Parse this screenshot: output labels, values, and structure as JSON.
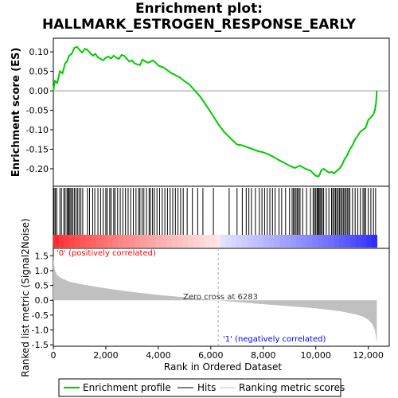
{
  "chart_data": {
    "type": "line",
    "title_line1": "Enrichment plot:",
    "title_line2": "HALLMARK_ESTROGEN_RESPONSE_EARLY",
    "es_panel": {
      "ylabel": "Enrichment score (ES)",
      "ylim": [
        -0.245,
        0.135
      ],
      "yticks": [
        -0.2,
        -0.15,
        -0.1,
        -0.05,
        0.0,
        0.05,
        0.1
      ],
      "ytick_labels": [
        "-0.20",
        "-0.15",
        "-0.10",
        "-0.05",
        "0.00",
        "0.05",
        "0.10"
      ],
      "line_color": "#00cc00",
      "es_curve": {
        "x": [
          0,
          60,
          150,
          250,
          350,
          450,
          520,
          600,
          700,
          800,
          900,
          1000,
          1100,
          1200,
          1300,
          1400,
          1500,
          1600,
          1700,
          1800,
          1900,
          2000,
          2100,
          2200,
          2300,
          2400,
          2500,
          2600,
          2700,
          2800,
          2900,
          3000,
          3100,
          3200,
          3300,
          3400,
          3500,
          3600,
          3700,
          3800,
          3900,
          4000,
          4100,
          4200,
          4300,
          4400,
          4500,
          4600,
          4700,
          4800,
          4900,
          5000,
          5200,
          5400,
          5600,
          5800,
          6000,
          6283,
          6500,
          6800,
          7000,
          7200,
          7400,
          7600,
          7800,
          8000,
          8200,
          8400,
          8600,
          8800,
          9000,
          9200,
          9300,
          9400,
          9600,
          9800,
          9900,
          10000,
          10100,
          10150,
          10200,
          10300,
          10400,
          10500,
          10600,
          10700,
          10800,
          10900,
          11000,
          11100,
          11200,
          11300,
          11400,
          11500,
          11600,
          11700,
          11800,
          11900,
          12000,
          12100,
          12200,
          12250,
          12300,
          12328
        ],
        "y": [
          0.0,
          0.025,
          0.02,
          0.05,
          0.045,
          0.07,
          0.075,
          0.09,
          0.095,
          0.11,
          0.113,
          0.105,
          0.098,
          0.108,
          0.105,
          0.097,
          0.09,
          0.095,
          0.086,
          0.082,
          0.078,
          0.085,
          0.088,
          0.083,
          0.09,
          0.085,
          0.082,
          0.092,
          0.09,
          0.082,
          0.075,
          0.078,
          0.07,
          0.068,
          0.066,
          0.08,
          0.076,
          0.072,
          0.075,
          0.078,
          0.072,
          0.065,
          0.062,
          0.06,
          0.055,
          0.05,
          0.045,
          0.042,
          0.038,
          0.035,
          0.03,
          0.025,
          0.015,
          0.0,
          -0.015,
          -0.035,
          -0.055,
          -0.085,
          -0.105,
          -0.125,
          -0.138,
          -0.14,
          -0.145,
          -0.15,
          -0.155,
          -0.158,
          -0.163,
          -0.17,
          -0.178,
          -0.185,
          -0.192,
          -0.198,
          -0.195,
          -0.192,
          -0.2,
          -0.205,
          -0.212,
          -0.218,
          -0.22,
          -0.215,
          -0.205,
          -0.2,
          -0.205,
          -0.21,
          -0.208,
          -0.212,
          -0.205,
          -0.2,
          -0.19,
          -0.175,
          -0.165,
          -0.15,
          -0.14,
          -0.125,
          -0.115,
          -0.105,
          -0.1,
          -0.095,
          -0.075,
          -0.068,
          -0.06,
          -0.05,
          -0.03,
          0.0
        ]
      }
    },
    "hits_panel": {
      "hit_positions": [
        30,
        80,
        130,
        250,
        310,
        400,
        450,
        520,
        560,
        600,
        640,
        690,
        740,
        800,
        860,
        920,
        980,
        1050,
        1120,
        1300,
        1380,
        1500,
        1580,
        1700,
        1800,
        1900,
        2000,
        2050,
        2150,
        2200,
        2300,
        2350,
        2450,
        2550,
        2650,
        2750,
        2850,
        2950,
        3050,
        3150,
        3250,
        3300,
        3380,
        3450,
        3550,
        3650,
        3700,
        3780,
        3850,
        3950,
        4050,
        4150,
        4250,
        4350,
        4450,
        4550,
        4650,
        4750,
        4850,
        4950,
        5100,
        5300,
        5500,
        5700,
        6100,
        6700,
        7000,
        7200,
        7350,
        7450,
        7550,
        7700,
        7850,
        7950,
        8050,
        8150,
        8250,
        8350,
        8450,
        8600,
        8700,
        8850,
        9000,
        9100,
        9150,
        9200,
        9250,
        9300,
        9350,
        9400,
        9500,
        9650,
        9800,
        9900,
        9950,
        10000,
        10050,
        10080,
        10120,
        10160,
        10200,
        10250,
        10300,
        10400,
        10500,
        10600,
        10650,
        10700,
        10750,
        10800,
        10850,
        10900,
        10950,
        11000,
        11050,
        11100,
        11150,
        11200,
        11250,
        11300,
        11400,
        11500,
        11600,
        11700,
        11800,
        11850,
        11900,
        12000,
        12100,
        12200,
        12280
      ]
    },
    "heatmap_bar": {
      "positive_color": "#ff0000",
      "negative_color": "#0000ff",
      "positive_label": "'0' (positively correlated)",
      "negative_label": "'1' (negatively correlated)"
    },
    "metric_panel": {
      "ylabel": "Ranked list metric (Signal2Noise)",
      "ylim": [
        -1.55,
        1.75
      ],
      "yticks": [
        -1.5,
        -1.0,
        -0.5,
        0.0,
        0.5,
        1.0,
        1.5
      ],
      "ytick_labels": [
        "-1.5",
        "-1.0",
        "-0.5",
        "0.0",
        "0.5",
        "1.0",
        "1.5"
      ],
      "zero_cross_label": "Zero cross at 6283",
      "zero_cross": 6283,
      "metric_curve": {
        "x": [
          0,
          20,
          60,
          150,
          300,
          600,
          1000,
          2000,
          3000,
          4000,
          5000,
          6283,
          7000,
          8000,
          9000,
          10000,
          10500,
          11000,
          11500,
          11800,
          12000,
          12150,
          12250,
          12300,
          12328
        ],
        "y": [
          1.55,
          1.2,
          1.0,
          0.85,
          0.75,
          0.63,
          0.55,
          0.4,
          0.28,
          0.18,
          0.1,
          0.0,
          -0.06,
          -0.13,
          -0.2,
          -0.27,
          -0.32,
          -0.38,
          -0.47,
          -0.55,
          -0.65,
          -0.8,
          -1.0,
          -1.25,
          -1.45
        ]
      }
    },
    "x_axis": {
      "xlabel": "Rank in Ordered Dataset",
      "xlim": [
        0,
        12800
      ],
      "xticks": [
        0,
        2000,
        4000,
        6000,
        8000,
        10000,
        12000
      ],
      "xtick_labels": [
        "0",
        "2,000",
        "4,000",
        "6,000",
        "8,000",
        "10,000",
        "12,000"
      ],
      "n_genes": 12328
    },
    "legend": {
      "items": [
        {
          "label": "Enrichment profile",
          "color": "#00cc00"
        },
        {
          "label": "Hits",
          "color": "#000000"
        },
        {
          "label": "Ranking metric scores",
          "color": "#c8c8c8"
        }
      ]
    }
  }
}
